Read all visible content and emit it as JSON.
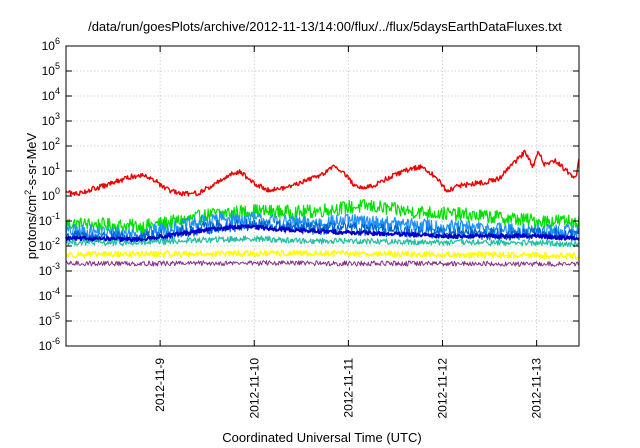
{
  "chart_data": {
    "type": "line",
    "title": "/data/run/goesPlots/archive/2012-11-13/14:00/flux/../flux/5daysEarthDataFluxes.txt",
    "xlabel": "Coordinated Universal Time (UTC)",
    "ylabel": {
      "pre": "protons/cm",
      "sup": "2",
      "post": "-s-sr-MeV"
    },
    "xlim": [
      0,
      5.45
    ],
    "x_unit": "days since 2012-11-08 00:00 UTC",
    "x_ticks": [
      {
        "x": 1,
        "label": "2012-11-9"
      },
      {
        "x": 2,
        "label": "2012-11-10"
      },
      {
        "x": 3,
        "label": "2012-11-11"
      },
      {
        "x": 4,
        "label": "2012-11-12"
      },
      {
        "x": 5,
        "label": "2012-11-13"
      }
    ],
    "y_scale": "log",
    "ylim": [
      1e-06,
      1000000.0
    ],
    "y_ticks": [
      {
        "exp": -6
      },
      {
        "exp": -5
      },
      {
        "exp": -4
      },
      {
        "exp": -3
      },
      {
        "exp": -2
      },
      {
        "exp": -1
      },
      {
        "exp": 0
      },
      {
        "exp": 1
      },
      {
        "exp": 2
      },
      {
        "exp": 3
      },
      {
        "exp": 4
      },
      {
        "exp": 5
      },
      {
        "exp": 6
      }
    ],
    "grid": true,
    "series": [
      {
        "color": "#00e000",
        "noise": 0.28,
        "width": 1.2,
        "points": [
          [
            0,
            0.08
          ],
          [
            0.8,
            0.06
          ],
          [
            1.2,
            0.1
          ],
          [
            1.6,
            0.2
          ],
          [
            2.0,
            0.25
          ],
          [
            2.5,
            0.22
          ],
          [
            3.0,
            0.35
          ],
          [
            3.2,
            0.4
          ],
          [
            3.6,
            0.25
          ],
          [
            4.0,
            0.2
          ],
          [
            4.5,
            0.15
          ],
          [
            5.0,
            0.1
          ],
          [
            5.45,
            0.1
          ]
        ]
      },
      {
        "color": "#1e90ff",
        "noise": 0.28,
        "width": 1.2,
        "points": [
          [
            0,
            0.04
          ],
          [
            0.8,
            0.03
          ],
          [
            1.2,
            0.06
          ],
          [
            1.6,
            0.12
          ],
          [
            2.0,
            0.12
          ],
          [
            2.5,
            0.08
          ],
          [
            3.0,
            0.1
          ],
          [
            3.4,
            0.08
          ],
          [
            4.0,
            0.06
          ],
          [
            4.5,
            0.05
          ],
          [
            5.0,
            0.04
          ],
          [
            5.45,
            0.04
          ]
        ]
      },
      {
        "color": "#0066cc",
        "noise": 0.25,
        "width": 1.2,
        "points": [
          [
            0,
            0.025
          ],
          [
            0.8,
            0.02
          ],
          [
            1.2,
            0.035
          ],
          [
            1.6,
            0.06
          ],
          [
            2.0,
            0.07
          ],
          [
            2.5,
            0.05
          ],
          [
            3.0,
            0.05
          ],
          [
            3.5,
            0.04
          ],
          [
            4.0,
            0.035
          ],
          [
            4.5,
            0.03
          ],
          [
            5.0,
            0.03
          ],
          [
            5.45,
            0.025
          ]
        ]
      },
      {
        "color": "#0000cc",
        "noise": 0.08,
        "width": 2.0,
        "points": [
          [
            0,
            0.02
          ],
          [
            0.8,
            0.018
          ],
          [
            1.2,
            0.03
          ],
          [
            1.6,
            0.05
          ],
          [
            1.9,
            0.06
          ],
          [
            2.2,
            0.05
          ],
          [
            2.6,
            0.04
          ],
          [
            3.0,
            0.035
          ],
          [
            3.5,
            0.03
          ],
          [
            4.0,
            0.025
          ],
          [
            4.5,
            0.025
          ],
          [
            5.0,
            0.025
          ],
          [
            5.45,
            0.02
          ]
        ]
      },
      {
        "color": "#20c0a0",
        "noise": 0.12,
        "width": 1.2,
        "points": [
          [
            0,
            0.014
          ],
          [
            0.8,
            0.013
          ],
          [
            1.2,
            0.016
          ],
          [
            1.6,
            0.018
          ],
          [
            2.0,
            0.02
          ],
          [
            2.5,
            0.016
          ],
          [
            3.0,
            0.016
          ],
          [
            4.0,
            0.014
          ],
          [
            5.0,
            0.013
          ],
          [
            5.45,
            0.012
          ]
        ]
      },
      {
        "color": "#ffff00",
        "noise": 0.12,
        "width": 1.4,
        "points": [
          [
            0,
            0.0045
          ],
          [
            1.0,
            0.0048
          ],
          [
            2.0,
            0.005
          ],
          [
            3.0,
            0.005
          ],
          [
            4.0,
            0.0045
          ],
          [
            5.0,
            0.0043
          ],
          [
            5.45,
            0.004
          ]
        ]
      },
      {
        "color": "#883388",
        "noise": 0.1,
        "width": 1.0,
        "points": [
          [
            0,
            0.002
          ],
          [
            1.0,
            0.002
          ],
          [
            2.0,
            0.0021
          ],
          [
            3.0,
            0.002
          ],
          [
            4.0,
            0.002
          ],
          [
            5.0,
            0.0019
          ],
          [
            5.45,
            0.0019
          ]
        ]
      },
      {
        "color": "#ee0000",
        "noise": 0.1,
        "width": 1.4,
        "points": [
          [
            0,
            1.5
          ],
          [
            0.1,
            1.2
          ],
          [
            0.4,
            2.5
          ],
          [
            0.7,
            6
          ],
          [
            0.85,
            7
          ],
          [
            0.95,
            4
          ],
          [
            1.05,
            2
          ],
          [
            1.2,
            1.2
          ],
          [
            1.4,
            1.3
          ],
          [
            1.55,
            2.5
          ],
          [
            1.7,
            6
          ],
          [
            1.85,
            10
          ],
          [
            2.0,
            3
          ],
          [
            2.15,
            1.8
          ],
          [
            2.3,
            2
          ],
          [
            2.5,
            3.5
          ],
          [
            2.7,
            7
          ],
          [
            2.85,
            15
          ],
          [
            2.95,
            9
          ],
          [
            3.05,
            3
          ],
          [
            3.15,
            2
          ],
          [
            3.3,
            3
          ],
          [
            3.45,
            6
          ],
          [
            3.6,
            10
          ],
          [
            3.75,
            15
          ],
          [
            3.85,
            10
          ],
          [
            3.95,
            5
          ],
          [
            4.05,
            1.5
          ],
          [
            4.15,
            2.5
          ],
          [
            4.3,
            3
          ],
          [
            4.45,
            3.5
          ],
          [
            4.6,
            5
          ],
          [
            4.7,
            12
          ],
          [
            4.8,
            30
          ],
          [
            4.88,
            60
          ],
          [
            4.96,
            15
          ],
          [
            5.02,
            70
          ],
          [
            5.08,
            18
          ],
          [
            5.2,
            25
          ],
          [
            5.35,
            8
          ],
          [
            5.42,
            5
          ],
          [
            5.45,
            30
          ]
        ]
      }
    ]
  }
}
